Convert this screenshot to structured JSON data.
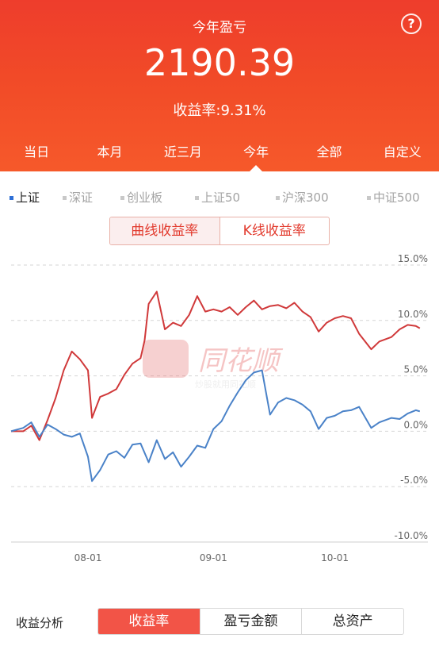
{
  "header": {
    "title": "今年盈亏",
    "amount": "2190.39",
    "rate": "收益率:9.31%",
    "help_glyph": "?",
    "periods": [
      "当日",
      "本月",
      "近三月",
      "今年",
      "全部",
      "自定义"
    ],
    "selected_period": "今年"
  },
  "indices": {
    "items": [
      "上证",
      "深证",
      "创业板",
      "上证50",
      "沪深300",
      "中证500"
    ],
    "active": "上证",
    "active_color": "#2e6fd6"
  },
  "chart_toggle": {
    "options": [
      "曲线收益率",
      "K线收益率"
    ],
    "selected": "曲线收益率"
  },
  "watermark": {
    "brand": "同花顺",
    "tagline": "炒股就用同花顺"
  },
  "chart_data": {
    "type": "line",
    "y_tick_labels": [
      "15.0%",
      "10.0%",
      "5.0%",
      "0.0%",
      "-5.0%",
      "-10.0%"
    ],
    "y_ticks": [
      15,
      10,
      5,
      0,
      -5,
      -10
    ],
    "ylim": [
      -10,
      15
    ],
    "x_tick_labels": [
      "08-01",
      "09-01",
      "10-01"
    ],
    "x_ticks": [
      0,
      31,
      61
    ],
    "xlim": [
      -19,
      84
    ],
    "grid": true,
    "series": [
      {
        "color": "#d0393a",
        "x": [
          -19,
          -16,
          -14,
          -12,
          -10,
          -8,
          -6,
          -4,
          -2,
          0,
          1,
          3,
          5,
          7,
          9,
          11,
          13,
          14,
          15,
          17,
          19,
          21,
          23,
          25,
          27,
          29,
          31,
          33,
          35,
          37,
          39,
          41,
          43,
          45,
          47,
          49,
          51,
          53,
          55,
          57,
          59,
          61,
          63,
          65,
          67,
          70,
          72,
          75,
          77,
          79,
          81,
          82
        ],
        "y": [
          0,
          0,
          0.5,
          -0.8,
          1,
          3,
          5.5,
          7.2,
          6.5,
          5.5,
          1.2,
          3.1,
          3.4,
          3.8,
          5.1,
          6.1,
          6.6,
          8.2,
          11.5,
          12.6,
          9.2,
          9.8,
          9.5,
          10.5,
          12.2,
          10.8,
          11,
          10.8,
          11.2,
          10.5,
          11.2,
          11.8,
          11,
          11.3,
          11.4,
          11.1,
          11.6,
          10.8,
          10.3,
          9,
          9.8,
          10.2,
          10.4,
          10.2,
          8.8,
          7.4,
          8.1,
          8.5,
          9.2,
          9.6,
          9.5,
          9.3
        ]
      },
      {
        "color": "#4a82c8",
        "x": [
          -19,
          -16,
          -14,
          -12,
          -10,
          -8,
          -6,
          -4,
          -2,
          0,
          1,
          3,
          5,
          7,
          9,
          11,
          13,
          15,
          17,
          19,
          21,
          23,
          25,
          27,
          29,
          31,
          33,
          35,
          37,
          39,
          41,
          43,
          45,
          47,
          49,
          51,
          53,
          55,
          57,
          59,
          61,
          63,
          65,
          67,
          70,
          72,
          75,
          77,
          79,
          81,
          82
        ],
        "y": [
          0,
          0.3,
          0.8,
          -0.5,
          0.6,
          0.2,
          -0.3,
          -0.5,
          -0.2,
          -2.3,
          -4.5,
          -3.5,
          -2.1,
          -1.8,
          -2.4,
          -1.2,
          -1.1,
          -2.8,
          -0.8,
          -2.5,
          -1.9,
          -3.2,
          -2.3,
          -1.3,
          -1.5,
          0.2,
          0.9,
          2.3,
          3.5,
          4.6,
          5.3,
          5.5,
          1.5,
          2.6,
          3,
          2.8,
          2.4,
          1.8,
          0.2,
          1.2,
          1.4,
          1.8,
          1.9,
          2.2,
          0.3,
          0.8,
          1.2,
          1.1,
          1.6,
          1.9,
          1.8
        ]
      }
    ]
  },
  "bottom": {
    "label": "收益分析",
    "tabs": [
      "收益率",
      "盈亏金额",
      "总资产"
    ],
    "selected": "收益率",
    "accent": "#f25447"
  }
}
